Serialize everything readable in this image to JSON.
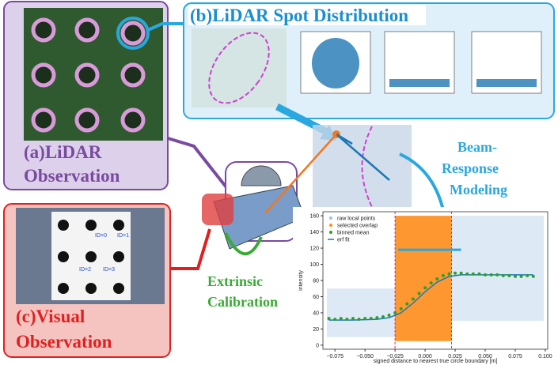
{
  "panel_b": {
    "title": "(b)LiDAR Spot Distribution"
  },
  "panel_a": {
    "title": [
      "(a)LiDAR",
      "Observation"
    ]
  },
  "panel_c": {
    "title": [
      "(c)Visual",
      "Observation"
    ],
    "markers": [
      "ID=0",
      "ID=1",
      "ID=2",
      "ID=3"
    ]
  },
  "beam_label": [
    "Beam-",
    "Response",
    "Modeling"
  ],
  "extrinsic_label": [
    "Extrinsic",
    "Calibration"
  ],
  "chart_data": {
    "type": "scatter",
    "xlabel": "signed distance to nearest true circle boundary [m]",
    "ylabel": "intensity",
    "xlim": [
      -0.085,
      0.102
    ],
    "ylim": [
      -5,
      165
    ],
    "xticks": [
      {
        "value": -0.075,
        "label": "−0.075"
      },
      {
        "value": -0.05,
        "label": "−0.050"
      },
      {
        "value": -0.025,
        "label": "−0.025"
      },
      {
        "value": 0,
        "label": "0.000"
      },
      0.025,
      {
        "value": 0.05,
        "label": "0.050"
      },
      0.075,
      {
        "value": 0.1,
        "label": "0.100"
      }
    ],
    "yticks": [
      0,
      20,
      40,
      60,
      80,
      100,
      120,
      140,
      160
    ],
    "vlines": [
      -0.025,
      0.022
    ],
    "vline_color": "#e03030",
    "series": [
      {
        "name": "raw local points",
        "color": "#9dc0e0"
      },
      {
        "name": "selected overlap",
        "color": "#ff8c1a"
      },
      {
        "name": "binned mean",
        "color": "#2ca02c",
        "x": [
          -0.08,
          -0.075,
          -0.07,
          -0.065,
          -0.06,
          -0.055,
          -0.05,
          -0.045,
          -0.04,
          -0.035,
          -0.03,
          -0.025,
          -0.02,
          -0.015,
          -0.01,
          -0.005,
          0,
          0.005,
          0.01,
          0.015,
          0.02,
          0.025,
          0.03,
          0.035,
          0.04,
          0.045,
          0.05,
          0.055,
          0.06,
          0.065,
          0.07,
          0.075,
          0.08,
          0.085,
          0.09
        ],
        "values": [
          33,
          32,
          33,
          32,
          33,
          32,
          33,
          33,
          34,
          35,
          37,
          40,
          45,
          51,
          57,
          64,
          71,
          77,
          82,
          86,
          88,
          89,
          89,
          88,
          88,
          88,
          87,
          87,
          87,
          86,
          86,
          85,
          85,
          86,
          85
        ]
      },
      {
        "name": "erf fit",
        "color": "#1f77b4",
        "x": [
          -0.08,
          -0.06,
          -0.04,
          -0.03,
          -0.02,
          -0.01,
          0,
          0.01,
          0.02,
          0.03,
          0.05,
          0.07,
          0.09
        ],
        "values": [
          31,
          31,
          32,
          34,
          40,
          52,
          66,
          78,
          85,
          87,
          87,
          87,
          87
        ]
      }
    ]
  }
}
